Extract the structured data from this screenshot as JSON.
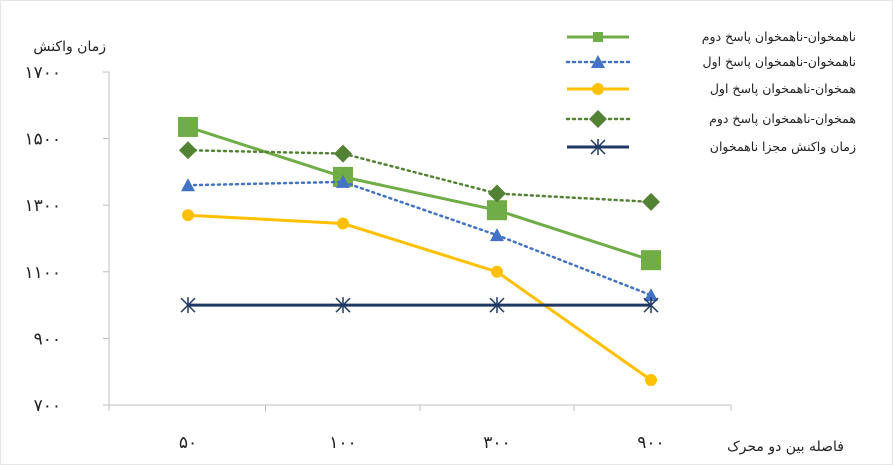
{
  "chart_data": {
    "type": "line",
    "title": "",
    "ylabel": "زمان واکنش",
    "xlabel": "فاصله بین دو محرک",
    "categories": [
      "۵۰",
      "۱۰۰",
      "۳۰۰",
      "۹۰۰"
    ],
    "y_ticks": [
      {
        "value": 700,
        "label": "۷۰۰"
      },
      {
        "value": 900,
        "label": "۹۰۰"
      },
      {
        "value": 1100,
        "label": "۱۱۰۰"
      },
      {
        "value": 1300,
        "label": "۱۳۰۰"
      },
      {
        "value": 1500,
        "label": "۱۵۰۰"
      },
      {
        "value": 1700,
        "label": "۱۷۰۰"
      }
    ],
    "ylim": [
      700,
      1700
    ],
    "grid": false,
    "legend_position": "top-right",
    "series": [
      {
        "name": "ناهمخوان-ناهمخوان پاسخ دوم",
        "values": [
          1535,
          1385,
          1285,
          1135
        ],
        "color": "#70ad47",
        "dash": "solid",
        "marker": "square"
      },
      {
        "name": "ناهمخوان-ناهمخوان پاسخ اول",
        "values": [
          1360,
          1370,
          1210,
          1030
        ],
        "color": "#4472c4",
        "dash": "dotted",
        "marker": "triangle"
      },
      {
        "name": "همخوان-ناهمخوان پاسخ اول",
        "values": [
          1270,
          1245,
          1100,
          775
        ],
        "color": "#ffc000",
        "dash": "solid",
        "marker": "circle"
      },
      {
        "name": "همخوان-ناهمخوان پاسخ دوم",
        "values": [
          1465,
          1455,
          1335,
          1310
        ],
        "color": "#548235",
        "dash": "dotted",
        "marker": "diamond"
      },
      {
        "name": "زمان واکنش مجزا ناهمخوان",
        "values": [
          1000,
          1000,
          1000,
          1000
        ],
        "color": "#203864",
        "dash": "solid",
        "marker": "star"
      }
    ]
  }
}
